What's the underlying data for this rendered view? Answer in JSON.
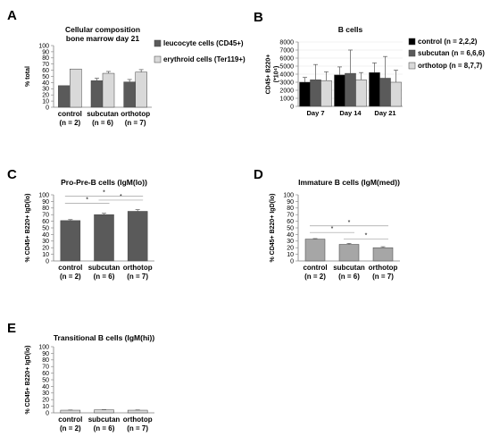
{
  "chart_data": [
    {
      "panel_label": "A",
      "type": "bar",
      "title": "Cellular composition\nbone marrow day 21",
      "ylabel": "% total",
      "ylim": [
        0,
        100
      ],
      "yticks": [
        0,
        10,
        20,
        30,
        40,
        50,
        60,
        70,
        80,
        90,
        100
      ],
      "categories": [
        "control\n(n = 2)",
        "subcutan\n(n = 6)",
        "orthotop\n(n = 7)"
      ],
      "series": [
        {
          "name": "leucocyte cells (CD45+)",
          "values": [
            35,
            43,
            41
          ],
          "errors": [
            0,
            4,
            4
          ],
          "color": "#5a5a5a"
        },
        {
          "name": "erythroid cells (Ter119+)",
          "values": [
            62,
            55,
            57
          ],
          "errors": [
            0,
            3,
            4
          ],
          "color": "#d9d9d9"
        }
      ],
      "legend_position": "right",
      "significance": []
    },
    {
      "panel_label": "B",
      "type": "bar",
      "title": "B cells",
      "ylabel": "CD45+ B220+\n(*10⁴)",
      "ylim": [
        0,
        8000
      ],
      "yticks": [
        0,
        1000,
        2000,
        3000,
        4000,
        5000,
        6000,
        7000,
        8000
      ],
      "categories": [
        "Day 7",
        "Day 14",
        "Day 21"
      ],
      "series": [
        {
          "name": "control (n = 2,2,2)",
          "values": [
            3000,
            3900,
            4200
          ],
          "errors": [
            600,
            1000,
            1200
          ],
          "color": "#000000"
        },
        {
          "name": "subcutan (n = 6,6,6)",
          "values": [
            3300,
            4100,
            3500
          ],
          "errors": [
            1900,
            2900,
            2700
          ],
          "color": "#5a5a5a"
        },
        {
          "name": "orthotop (n = 8,7,7)",
          "values": [
            3200,
            3300,
            3000
          ],
          "errors": [
            1100,
            900,
            1500
          ],
          "color": "#d9d9d9"
        }
      ],
      "legend_position": "right",
      "significance": []
    },
    {
      "panel_label": "C",
      "type": "bar",
      "title": "Pro-Pre-B cells (IgM(lo))",
      "ylabel": "% CD45+ B220+ IgD(lo)",
      "ylim": [
        0,
        100
      ],
      "yticks": [
        0,
        10,
        20,
        30,
        40,
        50,
        60,
        70,
        80,
        90,
        100
      ],
      "categories": [
        "control\n(n = 2)",
        "subcutan\n(n = 6)",
        "orthotop\n(n = 7)"
      ],
      "series": [
        {
          "name": "",
          "values": [
            61,
            70,
            75
          ],
          "errors": [
            1.5,
            2,
            2.5
          ],
          "color": "#5a5a5a"
        }
      ],
      "legend_position": "none",
      "significance": [
        {
          "from": 0,
          "to": 1,
          "y": 87,
          "label": "*"
        },
        {
          "from": 1,
          "to": 2,
          "y": 92,
          "label": "*"
        },
        {
          "from": 0,
          "to": 2,
          "y": 98,
          "label": "*"
        }
      ]
    },
    {
      "panel_label": "D",
      "type": "bar",
      "title": "Immature B cells (IgM(med))",
      "ylabel": "% CD45+ B220+ IgD(lo)",
      "ylim": [
        0,
        100
      ],
      "yticks": [
        0,
        10,
        20,
        30,
        40,
        50,
        60,
        70,
        80,
        90,
        100
      ],
      "categories": [
        "control\n(n = 2)",
        "subcutan\n(n = 6)",
        "orthotop\n(n = 7)"
      ],
      "series": [
        {
          "name": "",
          "values": [
            33,
            25,
            20
          ],
          "errors": [
            0.8,
            1.5,
            1.5
          ],
          "color": "#a6a6a6"
        }
      ],
      "legend_position": "none",
      "significance": [
        {
          "from": 1,
          "to": 2,
          "y": 33,
          "label": "*"
        },
        {
          "from": 0,
          "to": 1,
          "y": 43,
          "label": "*"
        },
        {
          "from": 0,
          "to": 2,
          "y": 53,
          "label": "*"
        }
      ]
    },
    {
      "panel_label": "E",
      "type": "bar",
      "title": "Transitional B cells (IgM(hi))",
      "ylabel": "% CD45+ B220+ IgD(lo)",
      "ylim": [
        0,
        100
      ],
      "yticks": [
        0,
        10,
        20,
        30,
        40,
        50,
        60,
        70,
        80,
        90,
        100
      ],
      "categories": [
        "control\n(n = 2)",
        "subcutan\n(n = 6)",
        "orthotop\n(n = 7)"
      ],
      "series": [
        {
          "name": "",
          "values": [
            4,
            4.5,
            4
          ],
          "errors": [
            0.3,
            0.3,
            0.4
          ],
          "color": "#d9d9d9"
        }
      ],
      "legend_position": "none",
      "significance": []
    }
  ]
}
